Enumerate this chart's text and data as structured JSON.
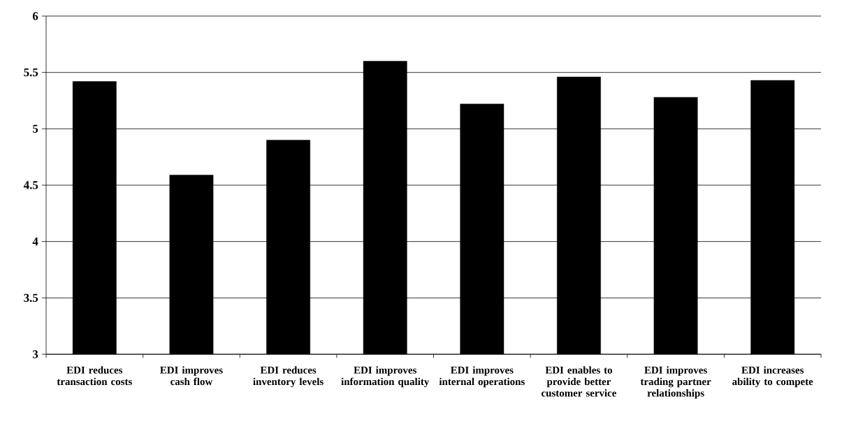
{
  "chart_data": {
    "type": "bar",
    "categories": [
      "EDI reduces transaction costs",
      "EDI improves cash flow",
      "EDI reduces inventory levels",
      "EDI improves information quality",
      "EDI improves internal operations",
      "EDI enables to provide better customer service",
      "EDI improves trading partner relationships",
      "EDI increases ability to compete"
    ],
    "values": [
      5.42,
      4.59,
      4.9,
      5.6,
      5.22,
      5.46,
      5.28,
      5.43
    ],
    "color": "#000000",
    "ylim": [
      3,
      6
    ],
    "yticks": [
      3,
      3.5,
      4,
      4.5,
      5,
      5.5,
      6
    ],
    "grid": "y"
  }
}
